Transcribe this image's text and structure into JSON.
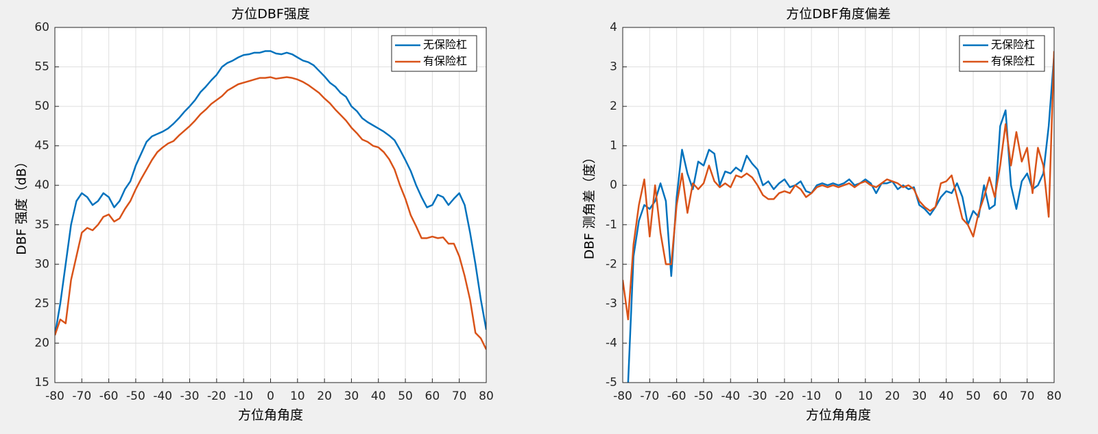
{
  "chart_data": [
    {
      "type": "line",
      "title": "方位DBF强度",
      "xlabel": "方位角角度",
      "ylabel": "DBF 强度（dB）",
      "x": [
        -80,
        -78,
        -76,
        -74,
        -72,
        -70,
        -68,
        -66,
        -64,
        -62,
        -60,
        -58,
        -56,
        -54,
        -52,
        -50,
        -48,
        -46,
        -44,
        -42,
        -40,
        -38,
        -36,
        -34,
        -32,
        -30,
        -28,
        -26,
        -24,
        -22,
        -20,
        -18,
        -16,
        -14,
        -12,
        -10,
        -8,
        -6,
        -4,
        -2,
        0,
        2,
        4,
        6,
        8,
        10,
        12,
        14,
        16,
        18,
        20,
        22,
        24,
        26,
        28,
        30,
        32,
        34,
        36,
        38,
        40,
        42,
        44,
        46,
        48,
        50,
        52,
        54,
        56,
        58,
        60,
        62,
        64,
        66,
        68,
        70,
        72,
        74,
        76,
        78,
        80
      ],
      "series": [
        {
          "name": "无保险杠",
          "color": "#0072BD",
          "values": [
            21,
            25,
            30,
            35,
            38,
            39,
            38.5,
            37.5,
            38,
            39,
            38.5,
            37.2,
            38,
            39.5,
            40.5,
            42.5,
            44,
            45.5,
            46.2,
            46.5,
            46.8,
            47.2,
            47.8,
            48.5,
            49.3,
            50,
            50.8,
            51.8,
            52.5,
            53.3,
            54,
            55,
            55.5,
            55.8,
            56.2,
            56.5,
            56.6,
            56.8,
            56.8,
            57,
            57,
            56.7,
            56.6,
            56.8,
            56.6,
            56.2,
            55.8,
            55.6,
            55.2,
            54.5,
            53.8,
            53,
            52.5,
            51.7,
            51.2,
            50,
            49.4,
            48.5,
            48,
            47.6,
            47.2,
            46.8,
            46.3,
            45.7,
            44.5,
            43.2,
            41.8,
            40,
            38.5,
            37.2,
            37.5,
            38.8,
            38.5,
            37.5,
            38.3,
            39,
            37.5,
            34,
            30,
            25.5,
            21.7
          ]
        },
        {
          "name": "有保险杠",
          "color": "#D95319",
          "values": [
            21,
            23,
            22.5,
            28,
            31,
            34,
            34.6,
            34.3,
            35,
            36,
            36.3,
            35.4,
            35.8,
            37,
            38,
            39.5,
            40.8,
            42,
            43.2,
            44.2,
            44.8,
            45.3,
            45.6,
            46.3,
            46.9,
            47.5,
            48.2,
            49,
            49.6,
            50.3,
            50.8,
            51.3,
            52,
            52.4,
            52.8,
            53,
            53.2,
            53.4,
            53.6,
            53.6,
            53.7,
            53.5,
            53.6,
            53.7,
            53.6,
            53.4,
            53.1,
            52.7,
            52.2,
            51.7,
            51,
            50.4,
            49.6,
            48.9,
            48.2,
            47.3,
            46.6,
            45.8,
            45.5,
            45,
            44.8,
            44.2,
            43.3,
            42,
            40,
            38.3,
            36.2,
            34.8,
            33.3,
            33.3,
            33.5,
            33.3,
            33.4,
            32.6,
            32.6,
            31,
            28.5,
            25.5,
            21.3,
            20.6,
            19.2
          ]
        }
      ],
      "xlim": [
        -80,
        80
      ],
      "xticks": [
        -80,
        -70,
        -60,
        -50,
        -40,
        -30,
        -20,
        -10,
        0,
        10,
        20,
        30,
        40,
        50,
        60,
        70,
        80
      ],
      "ylim": [
        15,
        60
      ],
      "yticks": [
        15,
        20,
        25,
        30,
        35,
        40,
        45,
        50,
        55,
        60
      ],
      "grid": true,
      "legend": "northeast"
    },
    {
      "type": "line",
      "title": "方位DBF角度偏差",
      "xlabel": "方位角角度",
      "ylabel": "DBF 测角差（度）",
      "x": [
        -80,
        -78,
        -76,
        -74,
        -72,
        -70,
        -68,
        -66,
        -64,
        -62,
        -60,
        -58,
        -56,
        -54,
        -52,
        -50,
        -48,
        -46,
        -44,
        -42,
        -40,
        -38,
        -36,
        -34,
        -32,
        -30,
        -28,
        -26,
        -24,
        -22,
        -20,
        -18,
        -16,
        -14,
        -12,
        -10,
        -8,
        -6,
        -4,
        -2,
        0,
        2,
        4,
        6,
        8,
        10,
        12,
        14,
        16,
        18,
        20,
        22,
        24,
        26,
        28,
        30,
        32,
        34,
        36,
        38,
        40,
        42,
        44,
        46,
        48,
        50,
        52,
        54,
        56,
        58,
        60,
        62,
        64,
        66,
        68,
        70,
        72,
        74,
        76,
        78,
        80
      ],
      "series": [
        {
          "name": "无保险杠",
          "color": "#0072BD",
          "values": [
            null,
            -5,
            -1.8,
            -0.9,
            -0.5,
            -0.6,
            -0.4,
            0.05,
            -0.4,
            -2.3,
            -0.3,
            0.9,
            0.3,
            -0.1,
            0.6,
            0.5,
            0.9,
            0.8,
            0,
            0.35,
            0.3,
            0.45,
            0.35,
            0.75,
            0.55,
            0.4,
            0,
            0.1,
            -0.1,
            0.05,
            0.15,
            -0.05,
            0,
            0.1,
            -0.15,
            -0.2,
            0,
            0.05,
            0,
            0.05,
            0,
            0.05,
            0.15,
            0,
            0.05,
            0.15,
            0.05,
            -0.2,
            0.05,
            0.05,
            0.1,
            -0.1,
            0,
            -0.1,
            -0.05,
            -0.5,
            -0.6,
            -0.75,
            -0.55,
            -0.3,
            -0.15,
            -0.2,
            0.05,
            -0.3,
            -1,
            -0.65,
            -0.8,
            0,
            -0.6,
            -0.5,
            1.5,
            1.9,
            0,
            -0.6,
            0.1,
            0.3,
            -0.1,
            0,
            0.3,
            1.5,
            3.3
          ]
        },
        {
          "name": "有保险杠",
          "color": "#D95319",
          "values": [
            -2.4,
            -3.4,
            -1.5,
            -0.5,
            0.15,
            -1.3,
            0,
            -1.2,
            -2,
            -2,
            -0.5,
            0.3,
            -0.7,
            0.05,
            -0.1,
            0.05,
            0.5,
            0.1,
            -0.05,
            0.05,
            -0.05,
            0.25,
            0.2,
            0.3,
            0.2,
            0,
            -0.25,
            -0.35,
            -0.35,
            -0.2,
            -0.15,
            -0.2,
            0,
            -0.1,
            -0.3,
            -0.2,
            -0.05,
            0,
            -0.05,
            0,
            -0.05,
            0,
            0.05,
            -0.05,
            0.05,
            0.1,
            0,
            -0.05,
            0.05,
            0.15,
            0.1,
            0.05,
            -0.05,
            0,
            -0.1,
            -0.4,
            -0.55,
            -0.65,
            -0.55,
            0.05,
            0.1,
            0.25,
            -0.3,
            -0.85,
            -1,
            -1.3,
            -0.7,
            -0.3,
            0.2,
            -0.3,
            0.5,
            1.55,
            0.5,
            1.35,
            0.6,
            0.95,
            -0.2,
            0.95,
            0.5,
            -0.8,
            3.4
          ]
        }
      ],
      "xlim": [
        -80,
        80
      ],
      "xticks": [
        -80,
        -70,
        -60,
        -50,
        -40,
        -30,
        -20,
        -10,
        0,
        10,
        20,
        30,
        40,
        50,
        60,
        70,
        80
      ],
      "ylim": [
        -5,
        4
      ],
      "yticks": [
        -5,
        -4,
        -3,
        -2,
        -1,
        0,
        1,
        2,
        3,
        4
      ],
      "grid": true,
      "legend": "northeast"
    }
  ]
}
